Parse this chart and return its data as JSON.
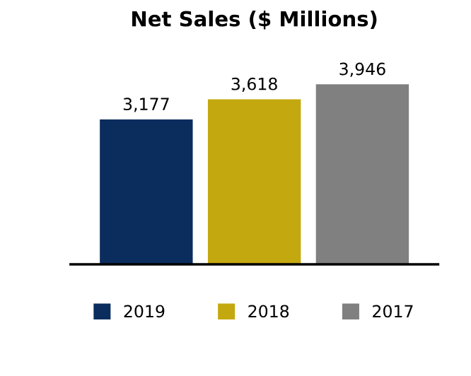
{
  "chart_data": {
    "type": "bar",
    "title": "Net Sales ($ Millions)",
    "categories": [
      null,
      null,
      null
    ],
    "series": [
      {
        "name": "2019",
        "color": "#0b2d5e",
        "values": [
          3177,
          null,
          null
        ],
        "value_labels": [
          "3,177",
          null,
          null
        ]
      },
      {
        "name": "2018",
        "color": "#c4a80f",
        "values": [
          null,
          3618,
          null
        ],
        "value_labels": [
          null,
          "3,618",
          null
        ]
      },
      {
        "name": "2017",
        "color": "#808080",
        "values": [
          null,
          null,
          3946
        ],
        "value_labels": [
          null,
          null,
          "3,946"
        ]
      }
    ],
    "stacked": true,
    "legend": "bottom",
    "grid": false,
    "tick_labels": false
  }
}
